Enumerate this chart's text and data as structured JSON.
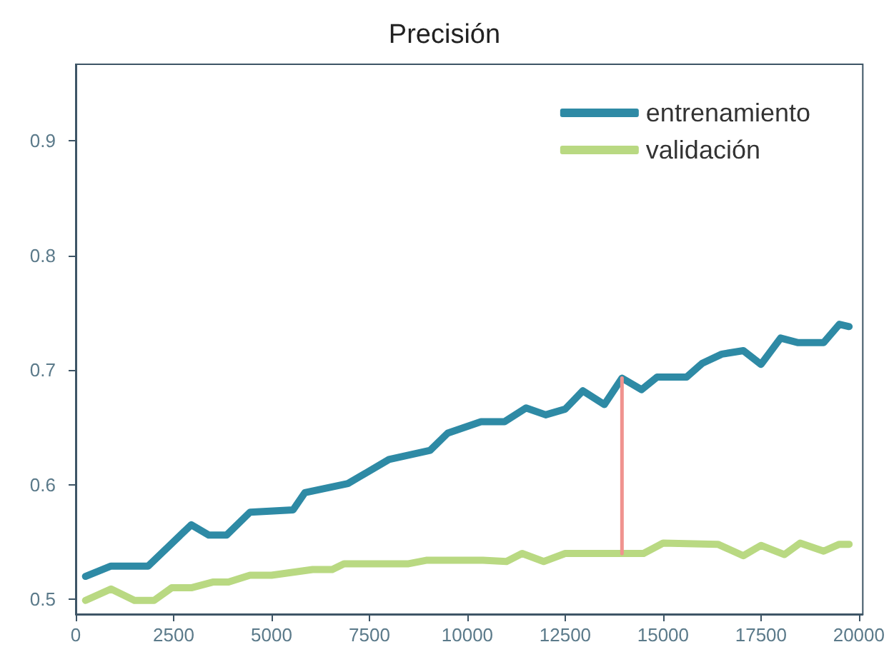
{
  "chart_data": {
    "type": "line",
    "title": "Precisión",
    "xlim": [
      0,
      20100
    ],
    "xticks": [
      0,
      2500,
      5000,
      7500,
      10000,
      12500,
      15000,
      17500,
      20000
    ],
    "ylim": [
      0.487,
      0.967
    ],
    "yticks": [
      0.5,
      0.6,
      0.7,
      0.8,
      0.9
    ],
    "grid": false,
    "legend": "top right",
    "marker": "none",
    "line_style": "solid",
    "series": [
      {
        "name": "entrenamiento",
        "color": "#2e8aa5",
        "x": [
          250,
          900,
          1850,
          2950,
          3400,
          3850,
          4450,
          5550,
          5850,
          6950,
          8000,
          9050,
          9500,
          10350,
          10950,
          11500,
          12000,
          12500,
          12950,
          13500,
          13950,
          14450,
          14850,
          15600,
          16000,
          16500,
          17050,
          17500,
          18000,
          18450,
          19100,
          19500,
          19750
        ],
        "values": [
          0.52,
          0.529,
          0.529,
          0.565,
          0.556,
          0.556,
          0.576,
          0.578,
          0.593,
          0.601,
          0.622,
          0.63,
          0.645,
          0.655,
          0.655,
          0.667,
          0.661,
          0.666,
          0.682,
          0.67,
          0.693,
          0.683,
          0.694,
          0.694,
          0.706,
          0.714,
          0.717,
          0.705,
          0.728,
          0.724,
          0.724,
          0.74,
          0.738
        ]
      },
      {
        "name": "validación",
        "color": "#b9d982",
        "x": [
          250,
          900,
          1500,
          2000,
          2450,
          2950,
          3500,
          3900,
          4450,
          5000,
          6050,
          6550,
          6850,
          8500,
          8950,
          10400,
          11000,
          11400,
          11950,
          12500,
          14500,
          15000,
          16400,
          17050,
          17500,
          18100,
          18500,
          19100,
          19500,
          19750
        ],
        "values": [
          0.499,
          0.509,
          0.499,
          0.499,
          0.51,
          0.51,
          0.515,
          0.515,
          0.521,
          0.521,
          0.526,
          0.526,
          0.531,
          0.531,
          0.534,
          0.534,
          0.533,
          0.54,
          0.533,
          0.54,
          0.54,
          0.549,
          0.548,
          0.538,
          0.547,
          0.539,
          0.549,
          0.542,
          0.548,
          0.548
        ]
      },
      {
        "color": "#f0938f",
        "x": [
          13950,
          13950
        ],
        "values": [
          0.54,
          0.693
        ]
      }
    ]
  }
}
